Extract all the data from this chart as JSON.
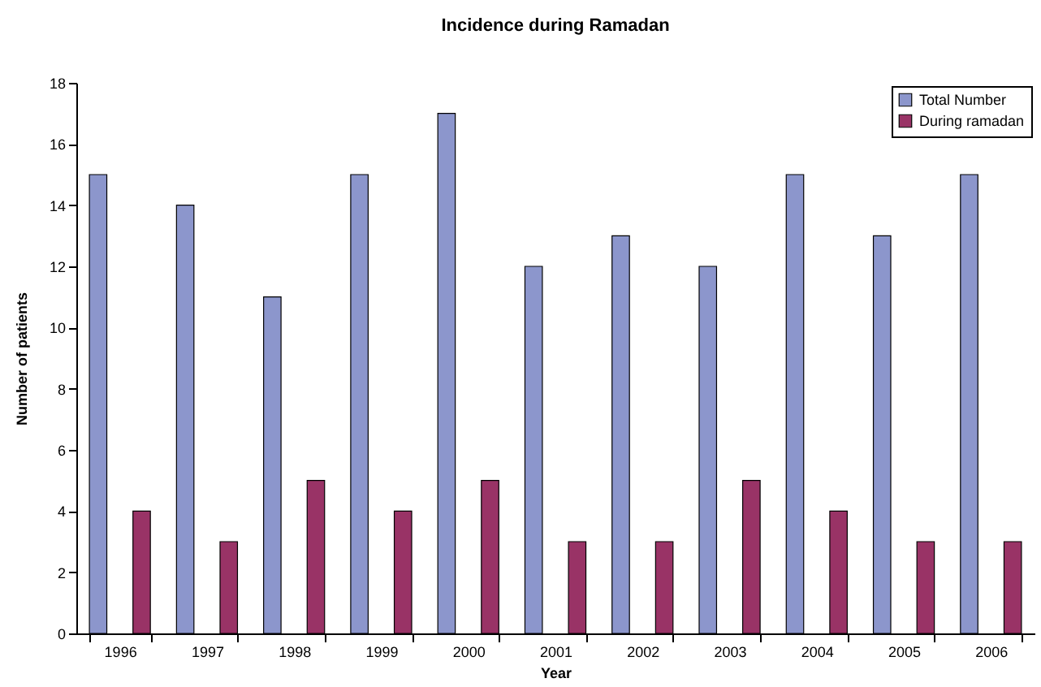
{
  "chart_data": {
    "type": "bar",
    "title": "Incidence during Ramadan",
    "xlabel": "Year",
    "ylabel": "Number of patients",
    "categories": [
      "1996",
      "1997",
      "1998",
      "1999",
      "2000",
      "2001",
      "2002",
      "2003",
      "2004",
      "2005",
      "2006"
    ],
    "series": [
      {
        "name": "Total Number",
        "color": "#8c96cc",
        "values": [
          15,
          14,
          11,
          15,
          17,
          12,
          13,
          12,
          15,
          13,
          15
        ]
      },
      {
        "name": "During ramadan",
        "color": "#993366",
        "values": [
          4,
          3,
          5,
          4,
          5,
          3,
          3,
          5,
          4,
          3,
          3
        ]
      }
    ],
    "ylim": [
      0,
      18
    ],
    "yticks": [
      0,
      2,
      4,
      6,
      8,
      10,
      12,
      14,
      16,
      18
    ],
    "grid": false,
    "legend": "top right"
  }
}
